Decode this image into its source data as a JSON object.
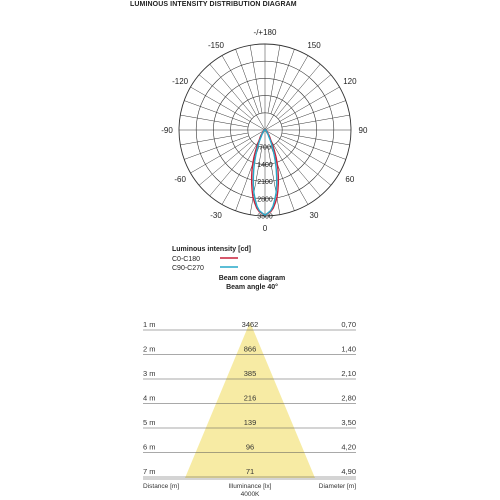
{
  "title": "LUMINOUS INTENSITY DISTRIBUTION DIAGRAM",
  "polar": {
    "angle_labels": [
      "-/+180",
      "150",
      "120",
      "90",
      "60",
      "30",
      "0",
      "-30",
      "-60",
      "-90",
      "-120",
      "-150"
    ],
    "ring_values": [
      "700",
      "1400",
      "2100",
      "2800",
      "3500"
    ],
    "ring_max": 3500
  },
  "legend": {
    "title": "Luminous intensity [cd]",
    "items": [
      {
        "name": "C0-C180",
        "color": "#c8203a"
      },
      {
        "name": "C90-C270",
        "color": "#27a9c8"
      }
    ]
  },
  "beam": {
    "title": "Beam cone diagram",
    "subtitle": "Beam angle 40°",
    "rows": [
      {
        "distance": "1 m",
        "illuminance": "3462",
        "diameter": "0,70"
      },
      {
        "distance": "2 m",
        "illuminance": "866",
        "diameter": "1,40"
      },
      {
        "distance": "3 m",
        "illuminance": "385",
        "diameter": "2,10"
      },
      {
        "distance": "4 m",
        "illuminance": "216",
        "diameter": "2,80"
      },
      {
        "distance": "5 m",
        "illuminance": "139",
        "diameter": "3,50"
      },
      {
        "distance": "6 m",
        "illuminance": "96",
        "diameter": "4,20"
      },
      {
        "distance": "7 m",
        "illuminance": "71",
        "diameter": "4,90"
      }
    ],
    "footer": {
      "distance": "Distance [m]",
      "illuminance": "Illuminance [lx]",
      "cct": "4000K",
      "diameter": "Diameter [m]"
    },
    "cone_color": "#f7eba4"
  },
  "curve_c0": {
    "angles": [
      0,
      5,
      10,
      15,
      20,
      25,
      30,
      40,
      60,
      90,
      180
    ],
    "values": [
      3462,
      3300,
      2800,
      2100,
      1450,
      850,
      450,
      180,
      60,
      20,
      0
    ]
  },
  "curve_c90": {
    "angles": [
      0,
      5,
      10,
      15,
      20,
      25,
      30,
      40,
      60,
      90,
      180
    ],
    "values": [
      3462,
      3250,
      2600,
      1800,
      1100,
      600,
      300,
      120,
      40,
      10,
      0
    ]
  }
}
